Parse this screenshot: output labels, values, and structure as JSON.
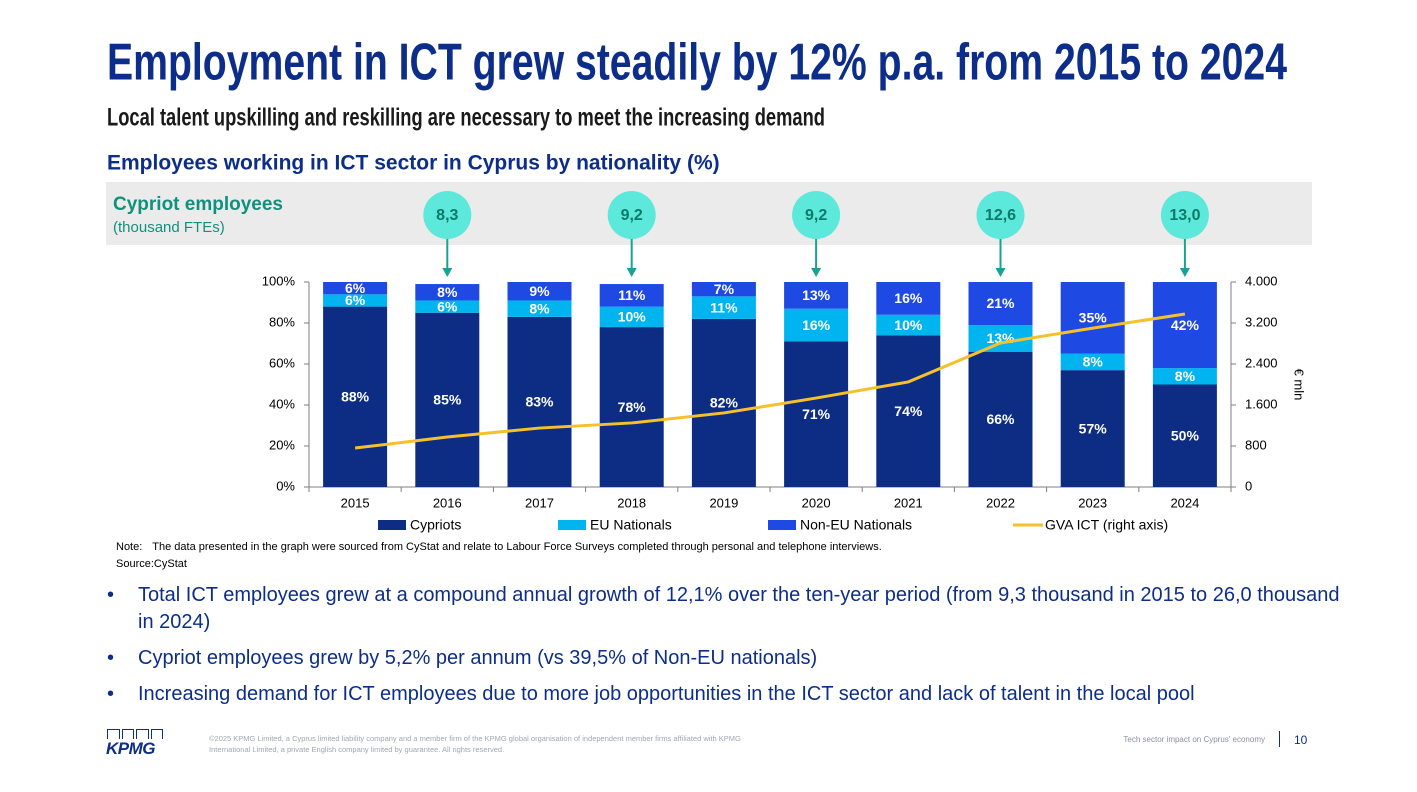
{
  "header": {
    "title": "Employment in ICT grew steadily by 12% p.a. from 2015 to 2024",
    "subtitle": "Local talent upskilling and reskilling are necessary to meet the increasing demand"
  },
  "chart_data": {
    "type": "bar",
    "stacked": true,
    "title": "Employees working in ICT sector in Cyprus by nationality (%)",
    "panel_title": "Cypriot employees",
    "panel_subtitle": "(thousand FTEs)",
    "annotations": [
      {
        "x": "2016",
        "text": "8,3"
      },
      {
        "x": "2018",
        "text": "9,2"
      },
      {
        "x": "2020",
        "text": "9,2"
      },
      {
        "x": "2022",
        "text": "12,6"
      },
      {
        "x": "2024",
        "text": "13,0"
      }
    ],
    "categories": [
      "2015",
      "2016",
      "2017",
      "2018",
      "2019",
      "2020",
      "2021",
      "2022",
      "2023",
      "2024"
    ],
    "series": [
      {
        "name": "Cypriots",
        "color": "#0c2d83",
        "values": [
          88,
          85,
          83,
          78,
          82,
          71,
          74,
          66,
          57,
          50
        ],
        "value_labels": [
          "88%",
          "85%",
          "83%",
          "78%",
          "82%",
          "71%",
          "74%",
          "66%",
          "57%",
          "50%"
        ]
      },
      {
        "name": "EU Nationals",
        "color": "#00b4f0",
        "values": [
          6,
          6,
          8,
          10,
          11,
          16,
          10,
          13,
          8,
          8
        ],
        "value_labels": [
          "6%",
          "6%",
          "8%",
          "10%",
          "11%",
          "16%",
          "10%",
          "13%",
          "8%",
          "8%"
        ]
      },
      {
        "name": "Non-EU Nationals",
        "color": "#1e49e2",
        "values": [
          6,
          8,
          9,
          11,
          7,
          13,
          16,
          21,
          35,
          42
        ],
        "value_labels": [
          "6%",
          "8%",
          "9%",
          "11%",
          "7%",
          "13%",
          "16%",
          "21%",
          "35%",
          "42%"
        ]
      },
      {
        "name": "GVA ICT (right axis)",
        "type": "line",
        "axis": "y2",
        "color": "#f5c02c",
        "values": [
          760,
          975,
          1150,
          1250,
          1445,
          1735,
          2050,
          2810,
          3100,
          3375
        ]
      }
    ],
    "ylim": [
      0,
      100
    ],
    "yticks": [
      {
        "value": 0,
        "label": "0%"
      },
      {
        "value": 20,
        "label": "20%"
      },
      {
        "value": 40,
        "label": "40%"
      },
      {
        "value": 60,
        "label": "60%"
      },
      {
        "value": 80,
        "label": "80%"
      },
      {
        "value": 100,
        "label": "100%"
      }
    ],
    "y2label": "€ mln",
    "y2lim": [
      0,
      4000
    ],
    "y2ticks": [
      0,
      {
        "value": 800,
        "label": "800"
      },
      {
        "value": 1600,
        "label": "1.600"
      },
      {
        "value": 2400,
        "label": "2.400"
      },
      {
        "value": 3200,
        "label": "3.200"
      },
      {
        "value": 4000,
        "label": "4.000"
      }
    ],
    "legend": "bottom",
    "grid": false
  },
  "notes": {
    "note_key": "Note:",
    "note": "The data presented in the graph were sourced from CyStat and relate to Labour Force Surveys completed through personal and telephone interviews.",
    "source": "Source:CyStat"
  },
  "bullets": [
    "Total ICT employees grew at a compound annual growth of 12,1% over the ten-year period (from 9,3 thousand in 2015 to 26,0 thousand in 2024)",
    "Cypriot employees grew by 5,2% per annum (vs 39,5% of Non-EU nationals)",
    "Increasing demand for ICT employees due to more job opportunities in the ICT sector and lack of talent in the local pool"
  ],
  "footer": {
    "logo": "KPMG",
    "copyright": "©2025 KPMG Limited, a Cyprus limited liability company and a member firm of the KPMG global organisation of independent member firms affiliated with KPMG International Limited, a private English company limited by guarantee. All rights reserved.",
    "doc": "Tech sector impact on Cyprus' economy",
    "page": "10"
  }
}
